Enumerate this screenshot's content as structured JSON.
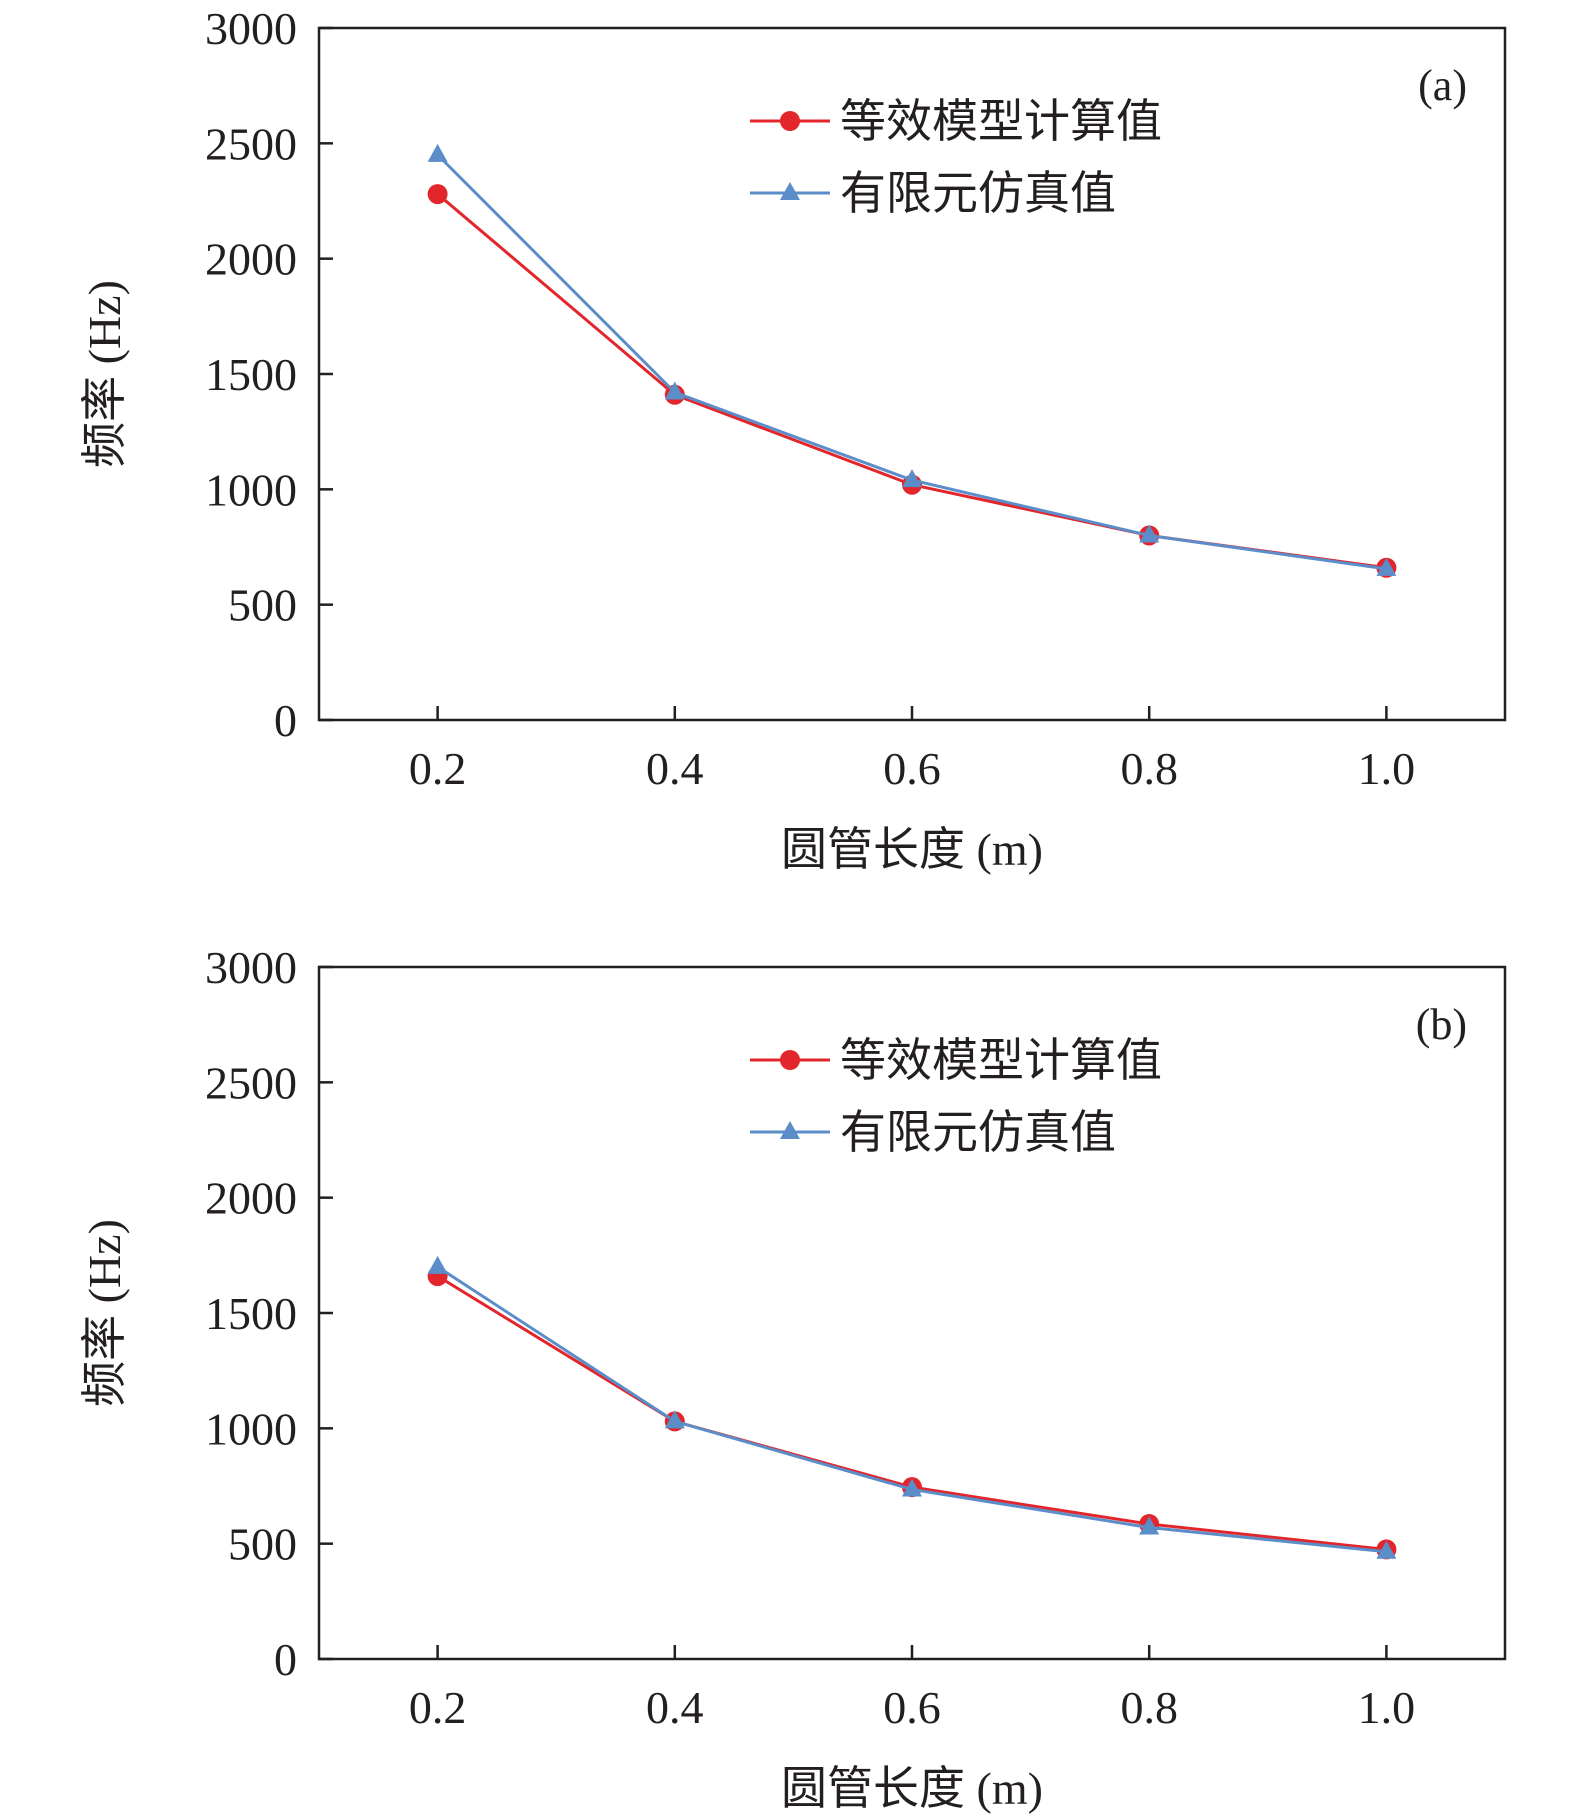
{
  "colors": {
    "axis": "#231f20",
    "series_equivalent": "#e3262b",
    "series_fem": "#5b8dc9",
    "background": "#ffffff"
  },
  "chart_data": [
    {
      "type": "line",
      "panel_label": "(a)",
      "xlabel": "圆管长度 (m)",
      "ylabel": "频率 (Hz)",
      "x": [
        0.2,
        0.4,
        0.6,
        0.8,
        1.0
      ],
      "x_tick_labels": [
        "0.2",
        "0.4",
        "0.6",
        "0.8",
        "1.0"
      ],
      "xlim": [
        0.1,
        1.1
      ],
      "ylim": [
        0,
        3000
      ],
      "y_ticks": [
        0,
        500,
        1000,
        1500,
        2000,
        2500,
        3000
      ],
      "grid": false,
      "legend_position": "top-right",
      "series": [
        {
          "name": "等效模型计算值",
          "marker": "circle",
          "color": "#e3262b",
          "values": [
            2280,
            1410,
            1020,
            800,
            660
          ]
        },
        {
          "name": "有限元仿真值",
          "marker": "triangle",
          "color": "#5b8dc9",
          "values": [
            2450,
            1420,
            1040,
            800,
            655
          ]
        }
      ]
    },
    {
      "type": "line",
      "panel_label": "(b)",
      "xlabel": "圆管长度 (m)",
      "ylabel": "频率 (Hz)",
      "x": [
        0.2,
        0.4,
        0.6,
        0.8,
        1.0
      ],
      "x_tick_labels": [
        "0.2",
        "0.4",
        "0.6",
        "0.8",
        "1.0"
      ],
      "xlim": [
        0.1,
        1.1
      ],
      "ylim": [
        0,
        3000
      ],
      "y_ticks": [
        0,
        500,
        1000,
        1500,
        2000,
        2500,
        3000
      ],
      "grid": false,
      "legend_position": "top-right",
      "series": [
        {
          "name": "等效模型计算值",
          "marker": "circle",
          "color": "#e3262b",
          "values": [
            1660,
            1030,
            745,
            585,
            475
          ]
        },
        {
          "name": "有限元仿真值",
          "marker": "triangle",
          "color": "#5b8dc9",
          "values": [
            1700,
            1030,
            735,
            570,
            465
          ]
        }
      ]
    }
  ]
}
